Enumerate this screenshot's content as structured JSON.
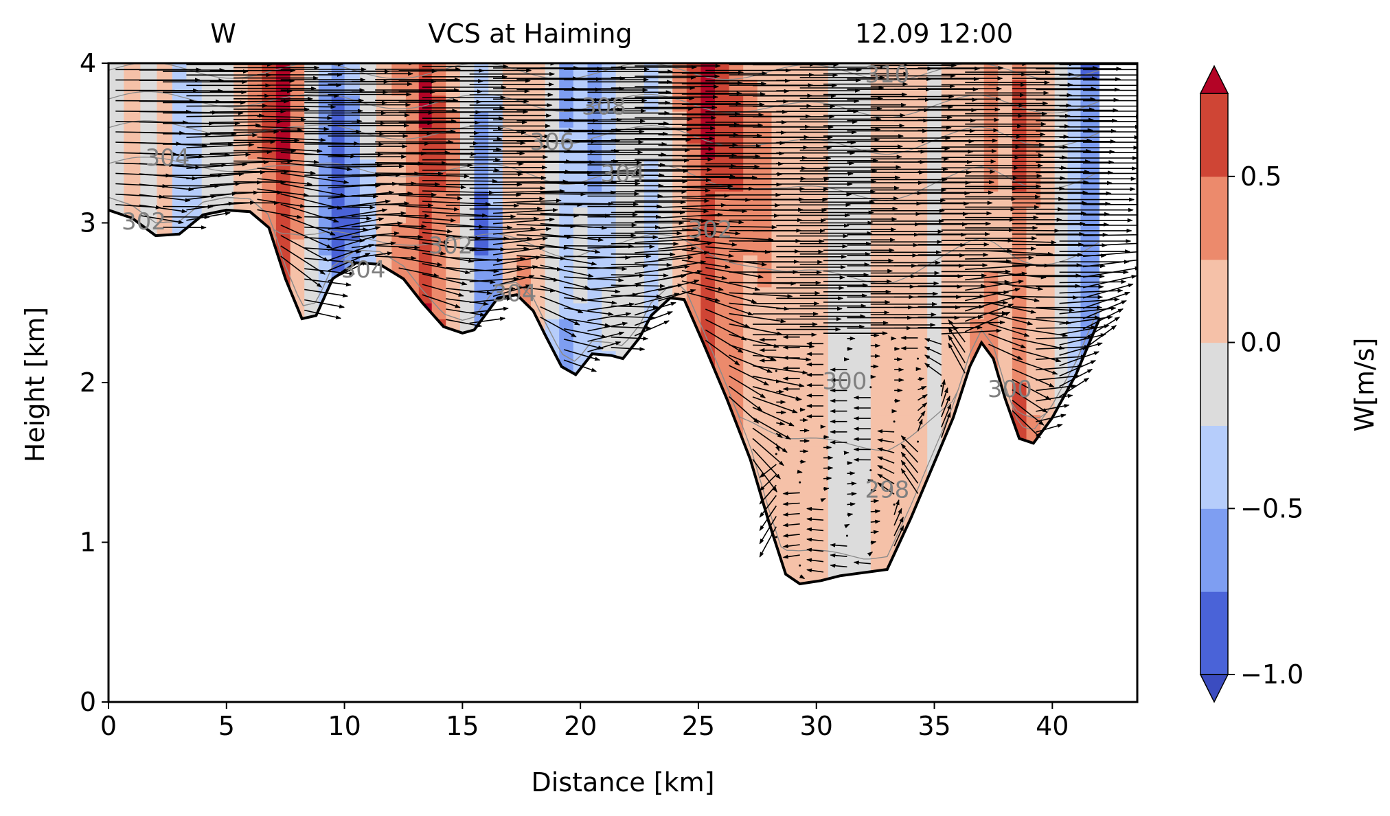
{
  "chart_data": {
    "type": "contour",
    "title_left": "W",
    "title_center": "VCS at Haiming",
    "title_right": "12.09 12:00",
    "xlabel": "Distance [km]",
    "ylabel": "Height [km]",
    "xlim": [
      0,
      43.6
    ],
    "ylim": [
      0,
      4
    ],
    "xticks": [
      0,
      5,
      10,
      15,
      20,
      25,
      30,
      35,
      40
    ],
    "yticks": [
      0,
      1,
      2,
      3,
      4
    ],
    "colorbar": {
      "label": "W[m/s]",
      "ticks": [
        -1.0,
        -0.5,
        0.0,
        0.5
      ],
      "tick_labels": [
        "−1.0",
        "−0.5",
        "0.0",
        "0.5"
      ],
      "levels": [
        -1.0,
        -0.75,
        -0.5,
        -0.25,
        0.0,
        0.25,
        0.5,
        0.75
      ],
      "colors": [
        "#4a63d8",
        "#7e9ef2",
        "#b6cdfb",
        "#dcdcdc",
        "#f5c1a8",
        "#ec8a6c",
        "#cf4535"
      ],
      "extend_low_color": "#3b4cc0",
      "extend_high_color": "#b40426"
    },
    "terrain": [
      [
        0,
        3.08
      ],
      [
        1,
        3.03
      ],
      [
        2,
        2.92
      ],
      [
        3,
        2.93
      ],
      [
        4,
        3.05
      ],
      [
        5,
        3.08
      ],
      [
        6,
        3.07
      ],
      [
        6.8,
        2.97
      ],
      [
        7.5,
        2.65
      ],
      [
        8.2,
        2.4
      ],
      [
        8.8,
        2.42
      ],
      [
        9.5,
        2.65
      ],
      [
        10.5,
        2.75
      ],
      [
        11.5,
        2.74
      ],
      [
        12.5,
        2.65
      ],
      [
        13.3,
        2.5
      ],
      [
        14.2,
        2.35
      ],
      [
        15,
        2.31
      ],
      [
        15.5,
        2.33
      ],
      [
        16.5,
        2.53
      ],
      [
        17.3,
        2.55
      ],
      [
        18,
        2.45
      ],
      [
        18.5,
        2.3
      ],
      [
        19.2,
        2.1
      ],
      [
        19.8,
        2.05
      ],
      [
        20.5,
        2.18
      ],
      [
        21.3,
        2.17
      ],
      [
        21.8,
        2.15
      ],
      [
        22.5,
        2.28
      ],
      [
        23,
        2.42
      ],
      [
        23.8,
        2.53
      ],
      [
        24.4,
        2.52
      ],
      [
        25.2,
        2.25
      ],
      [
        26.2,
        1.9
      ],
      [
        27.2,
        1.52
      ],
      [
        28,
        1.12
      ],
      [
        28.7,
        0.8
      ],
      [
        29.3,
        0.74
      ],
      [
        30.2,
        0.76
      ],
      [
        31,
        0.79
      ],
      [
        32,
        0.81
      ],
      [
        33,
        0.83
      ],
      [
        34,
        1.15
      ],
      [
        35,
        1.5
      ],
      [
        35.8,
        1.78
      ],
      [
        36.5,
        2.1
      ],
      [
        37,
        2.25
      ],
      [
        37.5,
        2.15
      ],
      [
        38,
        1.9
      ],
      [
        38.6,
        1.65
      ],
      [
        39.2,
        1.62
      ],
      [
        40,
        1.78
      ],
      [
        41,
        2.05
      ],
      [
        42,
        2.4
      ]
    ],
    "data_extent_x": [
      0,
      42
    ],
    "w_columns": [
      [
        0.3,
        -0.3
      ],
      [
        1.0,
        0.1
      ],
      [
        1.7,
        -0.3
      ],
      [
        2.4,
        0.1
      ],
      [
        3.0,
        -0.6
      ],
      [
        3.6,
        -0.4
      ],
      [
        4.3,
        -0.1
      ],
      [
        5.0,
        -0.3
      ],
      [
        5.6,
        0.2
      ],
      [
        6.2,
        0.4
      ],
      [
        6.8,
        0.7
      ],
      [
        7.4,
        0.9
      ],
      [
        8.0,
        0.4
      ],
      [
        8.6,
        -0.2
      ],
      [
        9.2,
        -0.6
      ],
      [
        9.7,
        -0.9
      ],
      [
        10.3,
        -0.7
      ],
      [
        11.0,
        -0.3
      ],
      [
        11.7,
        0.0
      ],
      [
        12.3,
        0.3
      ],
      [
        12.9,
        0.5
      ],
      [
        13.4,
        0.85
      ],
      [
        14.0,
        0.6
      ],
      [
        14.6,
        0.3
      ],
      [
        15.2,
        -0.2
      ],
      [
        15.8,
        -0.85
      ],
      [
        16.4,
        -0.6
      ],
      [
        17.0,
        0.2
      ],
      [
        17.6,
        0.3
      ],
      [
        18.2,
        0.1
      ],
      [
        18.8,
        -0.3
      ],
      [
        19.4,
        -0.7
      ],
      [
        20.0,
        -0.5
      ],
      [
        20.6,
        -0.75
      ],
      [
        21.2,
        -0.55
      ],
      [
        21.8,
        -0.3
      ],
      [
        22.4,
        -0.1
      ],
      [
        23.0,
        -0.4
      ],
      [
        23.6,
        -0.1
      ],
      [
        24.2,
        0.3
      ],
      [
        24.8,
        0.6
      ],
      [
        25.4,
        0.9
      ],
      [
        26.0,
        0.6
      ],
      [
        26.6,
        0.5
      ],
      [
        27.2,
        0.3
      ],
      [
        27.8,
        0.3
      ],
      [
        28.4,
        0.2
      ],
      [
        29.0,
        0.1
      ],
      [
        29.6,
        0.15
      ],
      [
        30.2,
        0.05
      ],
      [
        30.8,
        -0.05
      ],
      [
        31.4,
        -0.05
      ],
      [
        32.0,
        -0.05
      ],
      [
        32.6,
        0.05
      ],
      [
        33.2,
        0.1
      ],
      [
        33.8,
        0.1
      ],
      [
        34.4,
        0.05
      ],
      [
        35.0,
        -0.1
      ],
      [
        35.6,
        0.1
      ],
      [
        36.2,
        0.1
      ],
      [
        36.8,
        0.3
      ],
      [
        37.4,
        0.5
      ],
      [
        38.0,
        0.2
      ],
      [
        38.6,
        0.7
      ],
      [
        39.2,
        0.35
      ],
      [
        39.8,
        0.1
      ],
      [
        40.4,
        -0.3
      ],
      [
        40.9,
        -0.6
      ],
      [
        41.5,
        -0.9
      ]
    ],
    "theta_isolines": [
      {
        "level": "298",
        "ylevel": 1.35
      },
      {
        "level": "300",
        "ylevel": 1.95
      },
      {
        "level": "302",
        "ylevel": 2.85
      },
      {
        "level": "304",
        "ylevel": 3.3
      },
      {
        "level": "306",
        "ylevel": 3.55
      },
      {
        "level": "308",
        "ylevel": 3.75
      },
      {
        "level": "310",
        "ylevel": 3.95
      }
    ],
    "contour_labels": [
      {
        "text": "304",
        "x": 2.5,
        "y": 3.4
      },
      {
        "text": "302",
        "x": 1.5,
        "y": 3.0
      },
      {
        "text": "304",
        "x": 10.8,
        "y": 2.7
      },
      {
        "text": "302",
        "x": 14.5,
        "y": 2.85
      },
      {
        "text": "304",
        "x": 17.2,
        "y": 2.55
      },
      {
        "text": "306",
        "x": 18.8,
        "y": 3.5
      },
      {
        "text": "308",
        "x": 21.0,
        "y": 3.72
      },
      {
        "text": "304",
        "x": 21.8,
        "y": 3.3
      },
      {
        "text": "302",
        "x": 25.5,
        "y": 2.95
      },
      {
        "text": "300",
        "x": 31.2,
        "y": 2.0
      },
      {
        "text": "298",
        "x": 33.0,
        "y": 1.32
      },
      {
        "text": "310",
        "x": 33.0,
        "y": 3.92
      },
      {
        "text": "300",
        "x": 38.2,
        "y": 1.95
      }
    ]
  }
}
